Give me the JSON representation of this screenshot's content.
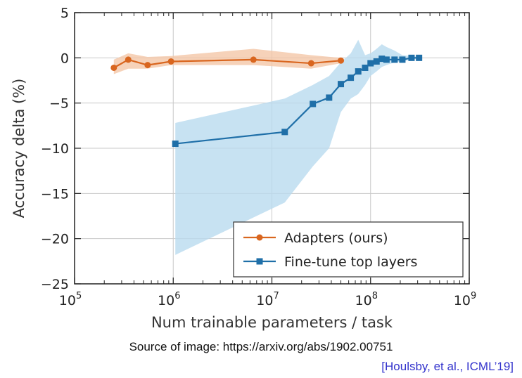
{
  "chart_data": {
    "type": "line",
    "xlabel": "Num trainable parameters / task",
    "ylabel": "Accuracy delta (%)",
    "xscale": "log",
    "xlim": [
      100000,
      1000000000
    ],
    "ylim": [
      -25,
      5
    ],
    "x_ticks": [
      {
        "value": 100000,
        "base": "10",
        "exp": "5"
      },
      {
        "value": 1000000,
        "base": "10",
        "exp": "6"
      },
      {
        "value": 10000000,
        "base": "10",
        "exp": "7"
      },
      {
        "value": 100000000,
        "base": "10",
        "exp": "8"
      },
      {
        "value": 1000000000,
        "base": "10",
        "exp": "9"
      }
    ],
    "y_ticks": [
      {
        "value": 5,
        "label": "5"
      },
      {
        "value": 0,
        "label": "0"
      },
      {
        "value": -5,
        "label": "−5"
      },
      {
        "value": -10,
        "label": "−10"
      },
      {
        "value": -15,
        "label": "−15"
      },
      {
        "value": -20,
        "label": "−20"
      },
      {
        "value": -25,
        "label": "−25"
      }
    ],
    "grid": true,
    "legend_position": "bottom-right",
    "series": [
      {
        "name": "Adapters (ours)",
        "color": "#d9661f",
        "band_color": "#f4c7a8",
        "marker": "circle",
        "x": [
          250000,
          350000,
          550000,
          950000,
          6500000,
          25000000,
          50000000
        ],
        "y": [
          -1.1,
          -0.2,
          -0.8,
          -0.4,
          -0.2,
          -0.6,
          -0.3
        ],
        "band_upper": [
          -0.2,
          0.5,
          0.1,
          0.2,
          1.0,
          0.3,
          0.0
        ],
        "band_lower": [
          -1.8,
          -1.2,
          -1.2,
          -0.8,
          -0.8,
          -1.2,
          -0.6
        ]
      },
      {
        "name": "Fine-tune top layers",
        "color": "#1f6fa8",
        "band_color": "#b9dbef",
        "marker": "square",
        "x": [
          1050000,
          13500000,
          26000000,
          38000000,
          50000000,
          63000000,
          75000000,
          88000000,
          100000000,
          115000000,
          130000000,
          145000000,
          175000000,
          210000000,
          260000000,
          310000000
        ],
        "y": [
          -9.5,
          -8.2,
          -5.1,
          -4.4,
          -2.9,
          -2.2,
          -1.5,
          -1.1,
          -0.6,
          -0.4,
          -0.1,
          -0.2,
          -0.2,
          -0.2,
          0.0,
          0.0
        ],
        "band_upper": [
          -7.2,
          -4.5,
          -3.0,
          -2.0,
          -0.5,
          0.5,
          2.0,
          0.3,
          0.5,
          1.0,
          1.5,
          1.2,
          0.8,
          0.3,
          0.2,
          0.1
        ],
        "band_lower": [
          -21.8,
          -16.0,
          -12.0,
          -10.0,
          -6.0,
          -4.5,
          -4.0,
          -3.0,
          -2.0,
          -1.5,
          -1.0,
          -0.8,
          -0.5,
          -0.4,
          -0.2,
          -0.1
        ]
      }
    ]
  },
  "source_note": "Source of image: https://arxiv.org/abs/1902.00751",
  "citation": "[Houlsby, et al., ICML’19]"
}
